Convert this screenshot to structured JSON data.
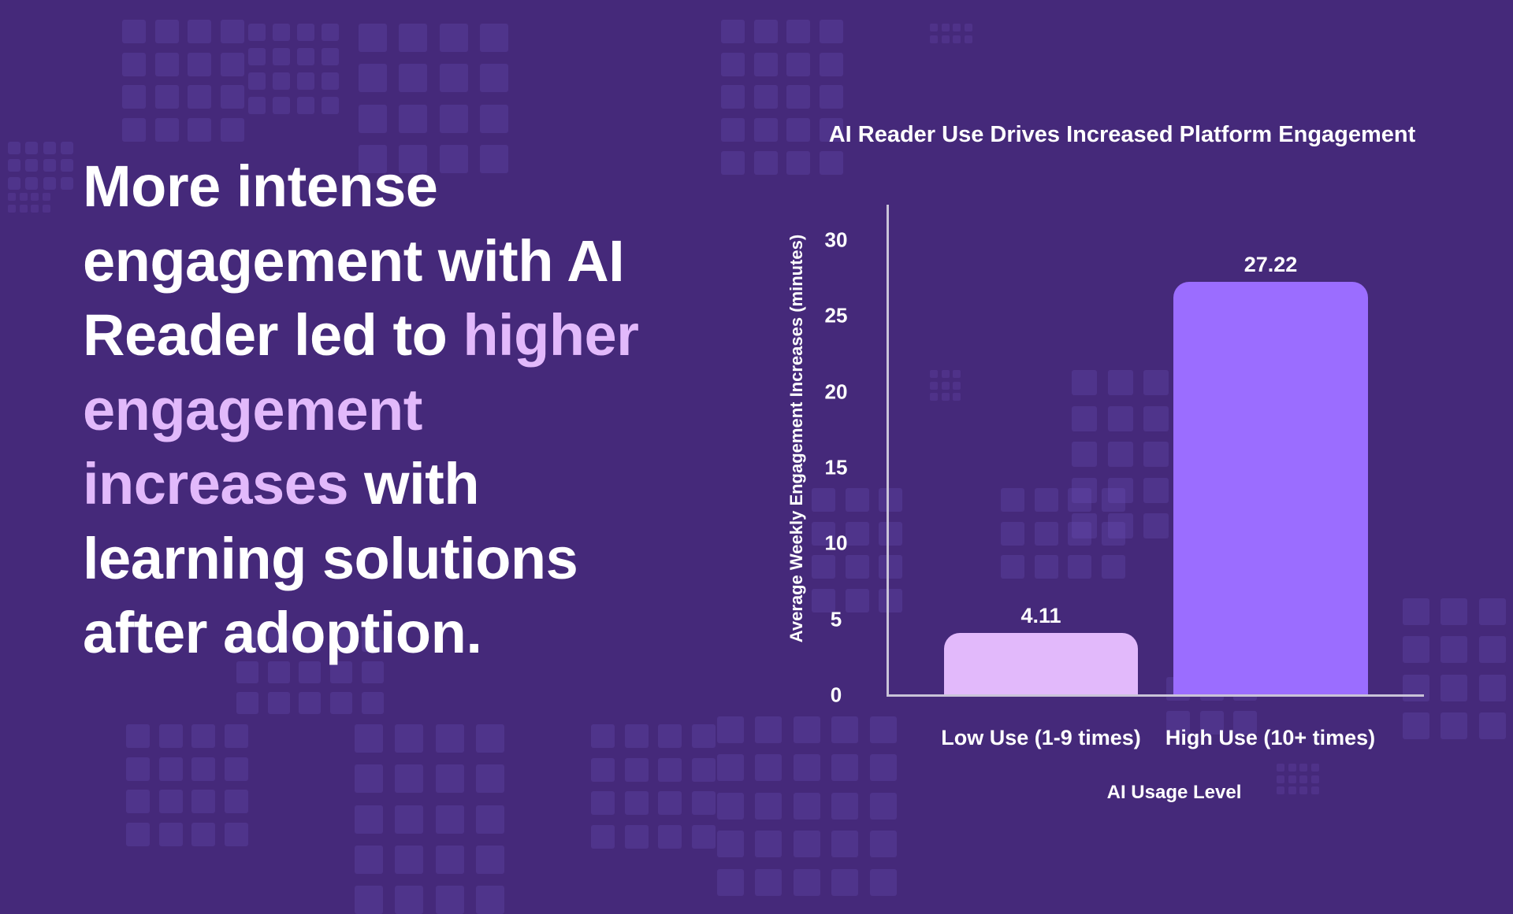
{
  "headline": {
    "part1": "More intense engagement with AI Reader led to ",
    "highlight": "higher engagement increases",
    "part2": " with learning solutions after adoption."
  },
  "colors": {
    "background": "#45297a",
    "highlight_text": "#e2b9fb",
    "low_bar": "#e2b9fb",
    "high_bar": "#9b6dff",
    "axis": "#c9c3d8"
  },
  "chart_data": {
    "type": "bar",
    "title": "AI Reader Use Drives Increased Platform Engagement",
    "xlabel": "AI Usage Level",
    "ylabel": "Average Weekly Engagement Increases (minutes)",
    "categories": [
      "Low Use (1-9 times)",
      "High Use (10+ times)"
    ],
    "values": [
      4.11,
      27.22
    ],
    "value_labels": [
      "4.11",
      "27.22"
    ],
    "bar_colors": [
      "#e2b9fb",
      "#9b6dff"
    ],
    "ylim": [
      0,
      30
    ],
    "yticks": [
      "0",
      "5",
      "10",
      "15",
      "20",
      "25",
      "30"
    ],
    "grid": false,
    "legend": null
  }
}
